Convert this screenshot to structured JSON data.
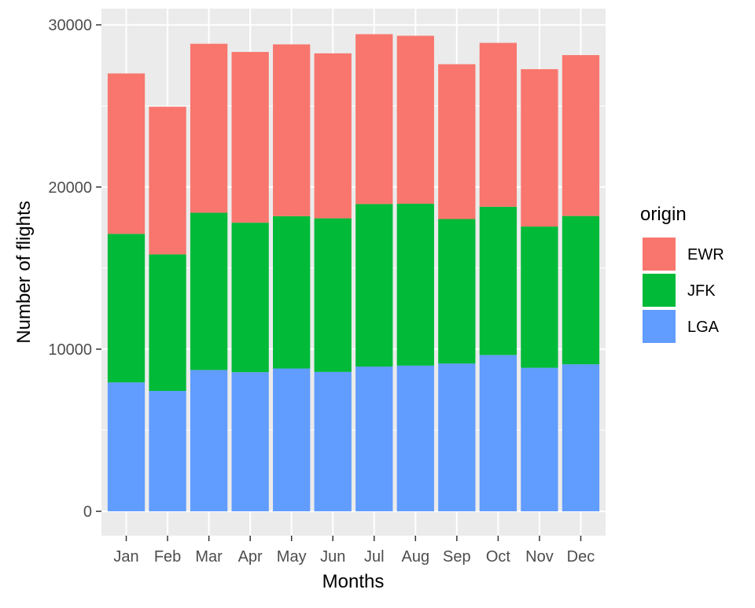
{
  "chart_data": {
    "type": "bar",
    "stacked": true,
    "title": "",
    "xlabel": "Months",
    "ylabel": "Number of flights",
    "categories": [
      "Jan",
      "Feb",
      "Mar",
      "Apr",
      "May",
      "Jun",
      "Jul",
      "Aug",
      "Sep",
      "Oct",
      "Nov",
      "Dec"
    ],
    "ylim": [
      -1500,
      31000
    ],
    "yticks": [
      0,
      10000,
      20000,
      30000
    ],
    "ytick_labels": [
      "0",
      "10000",
      "20000",
      "30000"
    ],
    "grid": true,
    "legend": {
      "title": "origin",
      "placement": "right",
      "entries": [
        "EWR",
        "JFK",
        "LGA"
      ]
    },
    "series": [
      {
        "name": "EWR",
        "color": "#F8766D",
        "values": [
          9893,
          9107,
          10420,
          10531,
          10592,
          10175,
          10475,
          10359,
          9550,
          10104,
          9707,
          9922
        ]
      },
      {
        "name": "JFK",
        "color": "#00BA38",
        "values": [
          9161,
          8421,
          9697,
          9218,
          9397,
          9472,
          10023,
          9983,
          8908,
          9143,
          8710,
          9146
        ]
      },
      {
        "name": "LGA",
        "color": "#619CFF",
        "values": [
          7950,
          7423,
          8717,
          8581,
          8807,
          8596,
          8927,
          8985,
          9116,
          9642,
          8851,
          9067
        ]
      }
    ],
    "stack_order_bottom_to_top": [
      "LGA",
      "JFK",
      "EWR"
    ]
  }
}
